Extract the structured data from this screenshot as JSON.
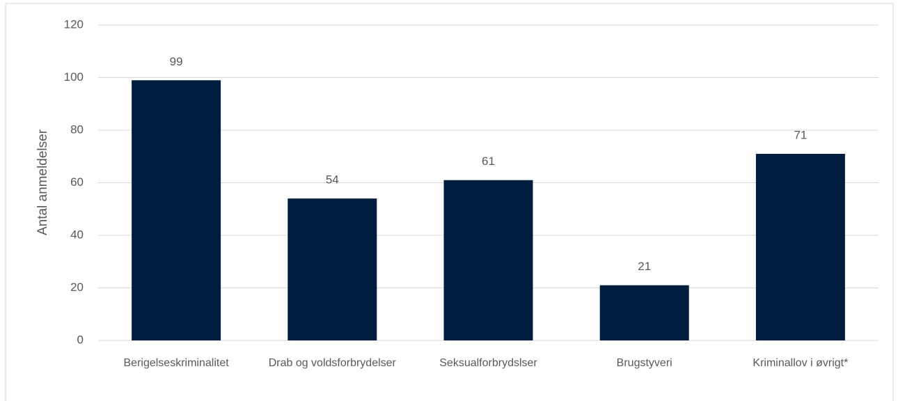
{
  "chart_data": {
    "type": "bar",
    "y_label": "Antal anmeldelser",
    "categories": [
      "Berigelseskriminalitet",
      "Drab og voldsforbrydelser",
      "Seksualforbrydslser",
      "Brugstyveri",
      "Kriminallov i øvrigt*"
    ],
    "values": [
      99,
      54,
      61,
      21,
      71
    ],
    "color": "#001d3d",
    "ylim": [
      0,
      120
    ],
    "yticks": [
      0,
      20,
      40,
      60,
      80,
      100,
      120
    ],
    "grid": true
  }
}
